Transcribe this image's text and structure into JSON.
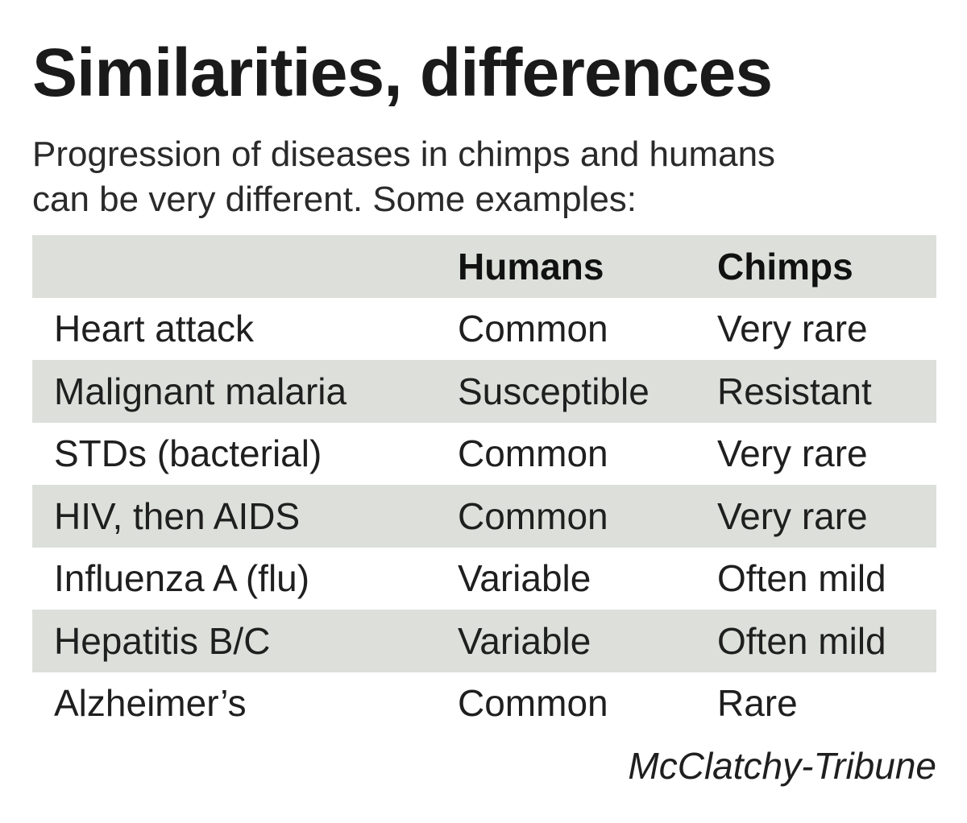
{
  "title": "Similarities, differences",
  "subtitle": {
    "line1": "Progression of diseases in chimps and humans",
    "line2": "can be very different. Some examples:"
  },
  "table": {
    "headers": {
      "disease": "",
      "humans": "Humans",
      "chimps": "Chimps"
    },
    "rows": [
      {
        "disease": "Heart attack",
        "humans": "Common",
        "chimps": "Very rare"
      },
      {
        "disease": "Malignant malaria",
        "humans": "Susceptible",
        "chimps": "Resistant"
      },
      {
        "disease": "STDs (bacterial)",
        "humans": "Common",
        "chimps": "Very rare"
      },
      {
        "disease": "HIV, then AIDS",
        "humans": "Common",
        "chimps": "Very rare"
      },
      {
        "disease": "Influenza A (flu)",
        "humans": "Variable",
        "chimps": "Often mild"
      },
      {
        "disease": "Hepatitis B/C",
        "humans": "Variable",
        "chimps": "Often mild"
      },
      {
        "disease": "Alzheimer’s",
        "humans": "Common",
        "chimps": "Rare"
      }
    ],
    "shade_color": "#dde0da"
  },
  "credit": "McClatchy-Tribune"
}
